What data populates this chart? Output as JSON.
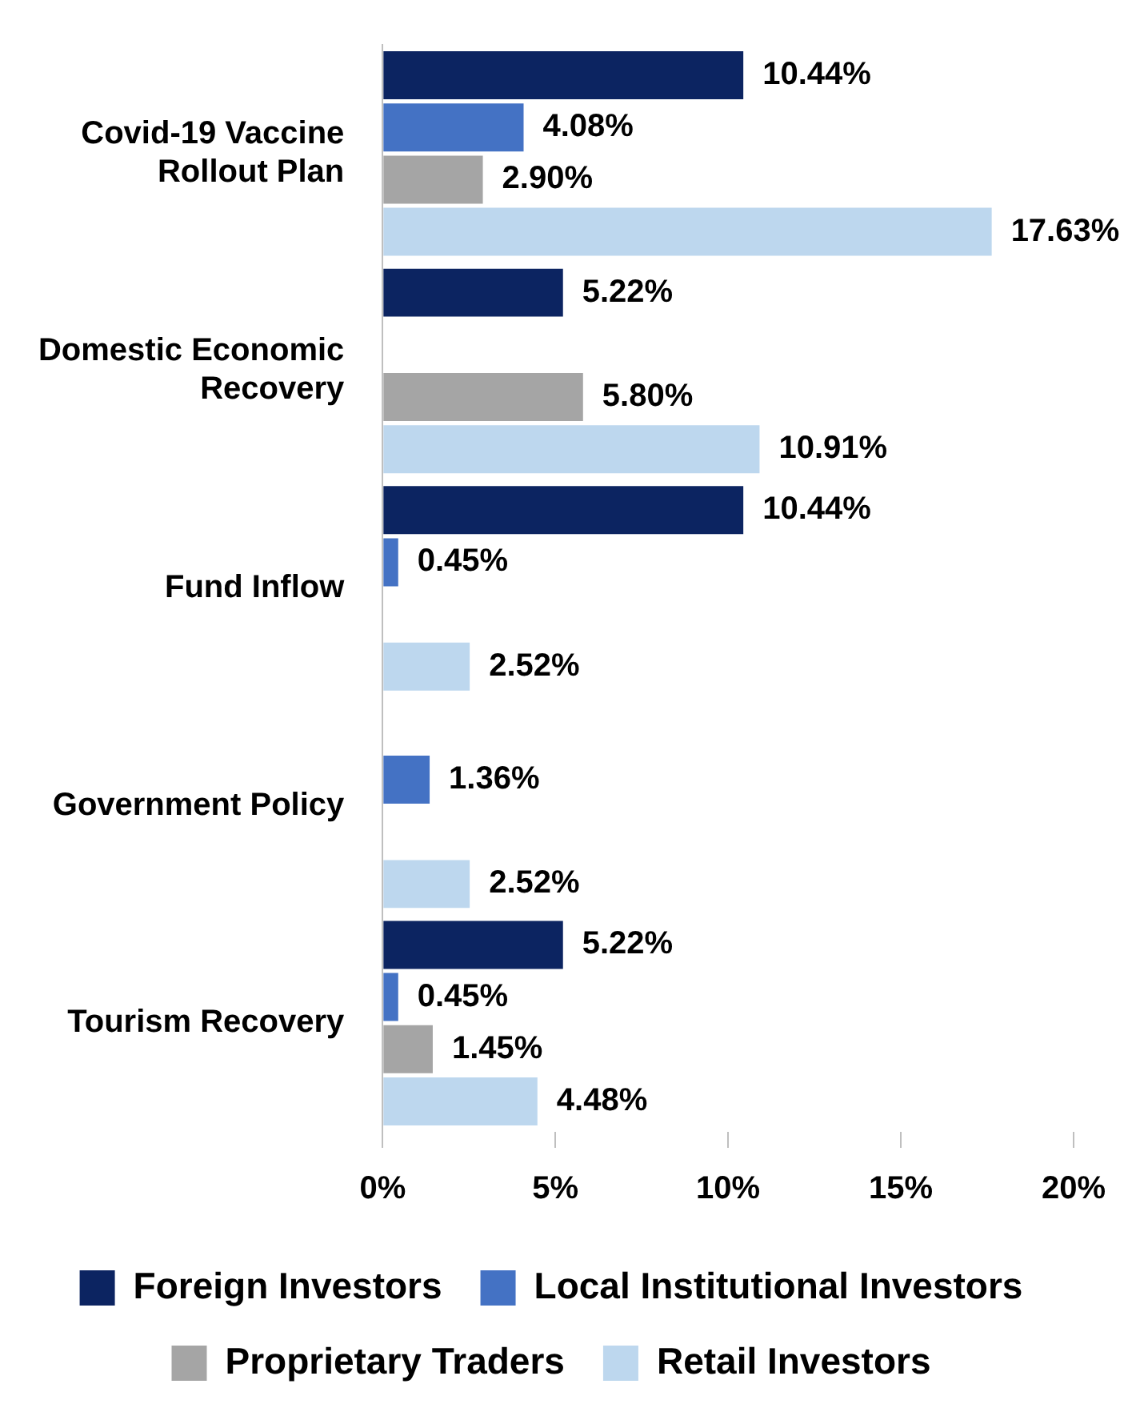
{
  "chart_data": {
    "type": "bar",
    "orientation": "horizontal",
    "categories": [
      "Covid-19 Vaccine Rollout Plan",
      "Domestic Economic Recovery",
      "Fund Inflow",
      "Government Policy",
      "Tourism Recovery"
    ],
    "series": [
      {
        "name": "Foreign Investors",
        "color": "#0c2461",
        "values": [
          10.44,
          5.22,
          10.44,
          null,
          5.22
        ],
        "value_labels": [
          "10.44%",
          "5.22%",
          "10.44%",
          null,
          "5.22%"
        ]
      },
      {
        "name": "Local Institutional Investors",
        "color": "#4472c4",
        "values": [
          4.08,
          null,
          0.45,
          1.36,
          0.45
        ],
        "value_labels": [
          "4.08%",
          null,
          "0.45%",
          "1.36%",
          "0.45%"
        ]
      },
      {
        "name": "Proprietary Traders",
        "color": "#a5a5a5",
        "values": [
          2.9,
          5.8,
          null,
          null,
          1.45
        ],
        "value_labels": [
          "2.90%",
          "5.80%",
          null,
          null,
          "1.45%"
        ]
      },
      {
        "name": "Retail Investors",
        "color": "#bdd7ee",
        "values": [
          17.63,
          10.91,
          2.52,
          2.52,
          4.48
        ],
        "value_labels": [
          "17.63%",
          "10.91%",
          "2.52%",
          "2.52%",
          "4.48%"
        ]
      }
    ],
    "xlim": [
      0,
      20
    ],
    "xticks": [
      {
        "value": 0,
        "label": "0%"
      },
      {
        "value": 5,
        "label": "5%"
      },
      {
        "value": 10,
        "label": "10%"
      },
      {
        "value": 15,
        "label": "15%"
      },
      {
        "value": 20,
        "label": "20%"
      }
    ],
    "grid": false,
    "legend": "bottom"
  }
}
